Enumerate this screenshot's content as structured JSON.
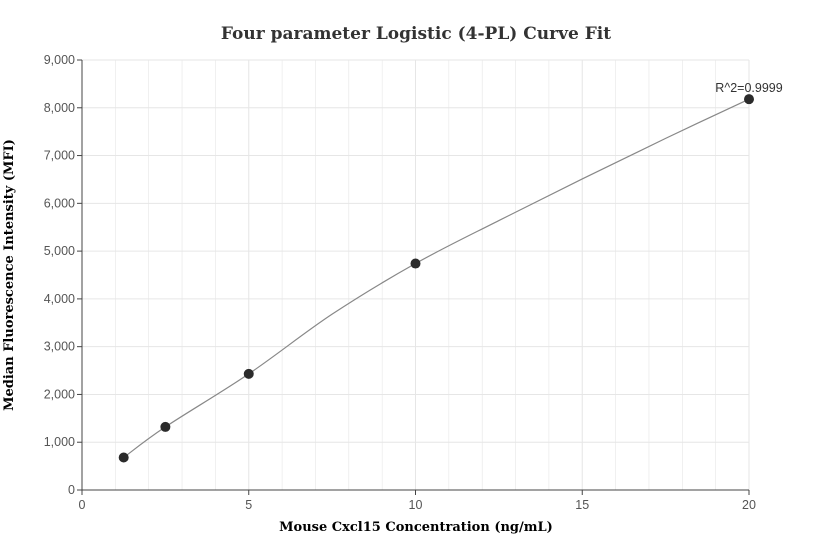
{
  "chart_data": {
    "type": "scatter",
    "title": "Four parameter Logistic (4-PL) Curve Fit",
    "xlabel": "Mouse Cxcl15 Concentration (ng/mL)",
    "ylabel": "Median Fluorescence Intensity (MFI)",
    "xlim": [
      0,
      20
    ],
    "ylim": [
      0,
      9000
    ],
    "x_ticks": [
      0,
      5,
      10,
      15,
      20
    ],
    "x_tick_labels": [
      "0",
      "5",
      "10",
      "15",
      "20"
    ],
    "y_ticks": [
      0,
      1000,
      2000,
      3000,
      4000,
      5000,
      6000,
      7000,
      8000,
      9000
    ],
    "y_tick_labels": [
      "0",
      "1,000",
      "2,000",
      "3,000",
      "4,000",
      "5,000",
      "6,000",
      "7,000",
      "8,000",
      "9,000"
    ],
    "grid": true,
    "series": [
      {
        "points": [
          {
            "x": 1.25,
            "y": 680
          },
          {
            "x": 2.5,
            "y": 1320
          },
          {
            "x": 5,
            "y": 2430
          },
          {
            "x": 10,
            "y": 4740
          },
          {
            "x": 20,
            "y": 8180
          }
        ],
        "marker_color": "#2b2b2b"
      }
    ],
    "fit_curve": {
      "points": [
        {
          "x": 1.25,
          "y": 680
        },
        {
          "x": 2.5,
          "y": 1320
        },
        {
          "x": 5,
          "y": 2430
        },
        {
          "x": 7.5,
          "y": 3680
        },
        {
          "x": 10,
          "y": 4740
        },
        {
          "x": 12.5,
          "y": 5640
        },
        {
          "x": 15,
          "y": 6510
        },
        {
          "x": 17.5,
          "y": 7360
        },
        {
          "x": 20,
          "y": 8180
        }
      ],
      "color": "#888888"
    },
    "annotation": "R^2=0.9999",
    "colors": {
      "grid": "#e6e6e6",
      "axis": "#444444",
      "marker": "#2b2b2b",
      "curve": "#888888"
    }
  }
}
